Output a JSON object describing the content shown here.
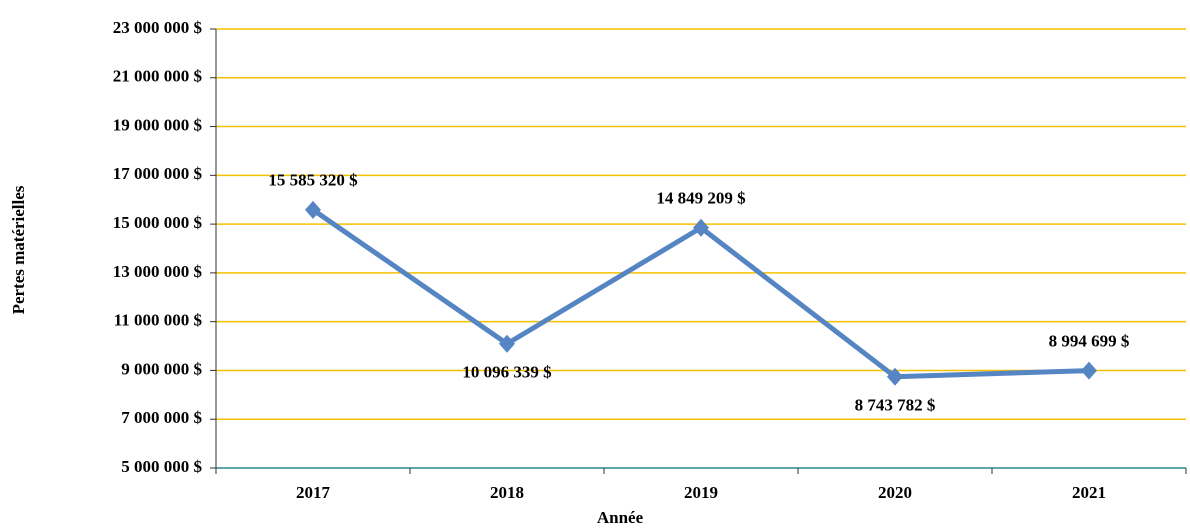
{
  "chart_data": {
    "type": "line",
    "x_label": "Année",
    "y_label": "Pertes matérielles",
    "categories": [
      "2017",
      "2018",
      "2019",
      "2020",
      "2021"
    ],
    "series": [
      {
        "name": "Pertes matérielles",
        "color": "#5585c3",
        "values": [
          15585320,
          10096339,
          14849209,
          8743782,
          8994699
        ],
        "value_labels": [
          "15 585 320 $",
          "10 096 339 $",
          "14 849 209 $",
          "8 743 782 $",
          "8 994 699 $"
        ]
      }
    ],
    "ylim": [
      5000000,
      23000000
    ],
    "yticks": [
      {
        "value": 5000000,
        "label": "5 000 000 $"
      },
      {
        "value": 7000000,
        "label": "7 000 000 $"
      },
      {
        "value": 9000000,
        "label": "9 000 000 $"
      },
      {
        "value": 11000000,
        "label": "11 000 000 $"
      },
      {
        "value": 13000000,
        "label": "13 000 000 $"
      },
      {
        "value": 15000000,
        "label": "15 000 000 $"
      },
      {
        "value": 17000000,
        "label": "17 000 000 $"
      },
      {
        "value": 19000000,
        "label": "19 000 000 $"
      },
      {
        "value": 21000000,
        "label": "21 000 000 $"
      },
      {
        "value": 23000000,
        "label": "23 000 000 $"
      }
    ],
    "grid": true,
    "grid_color": "#f5c000"
  }
}
